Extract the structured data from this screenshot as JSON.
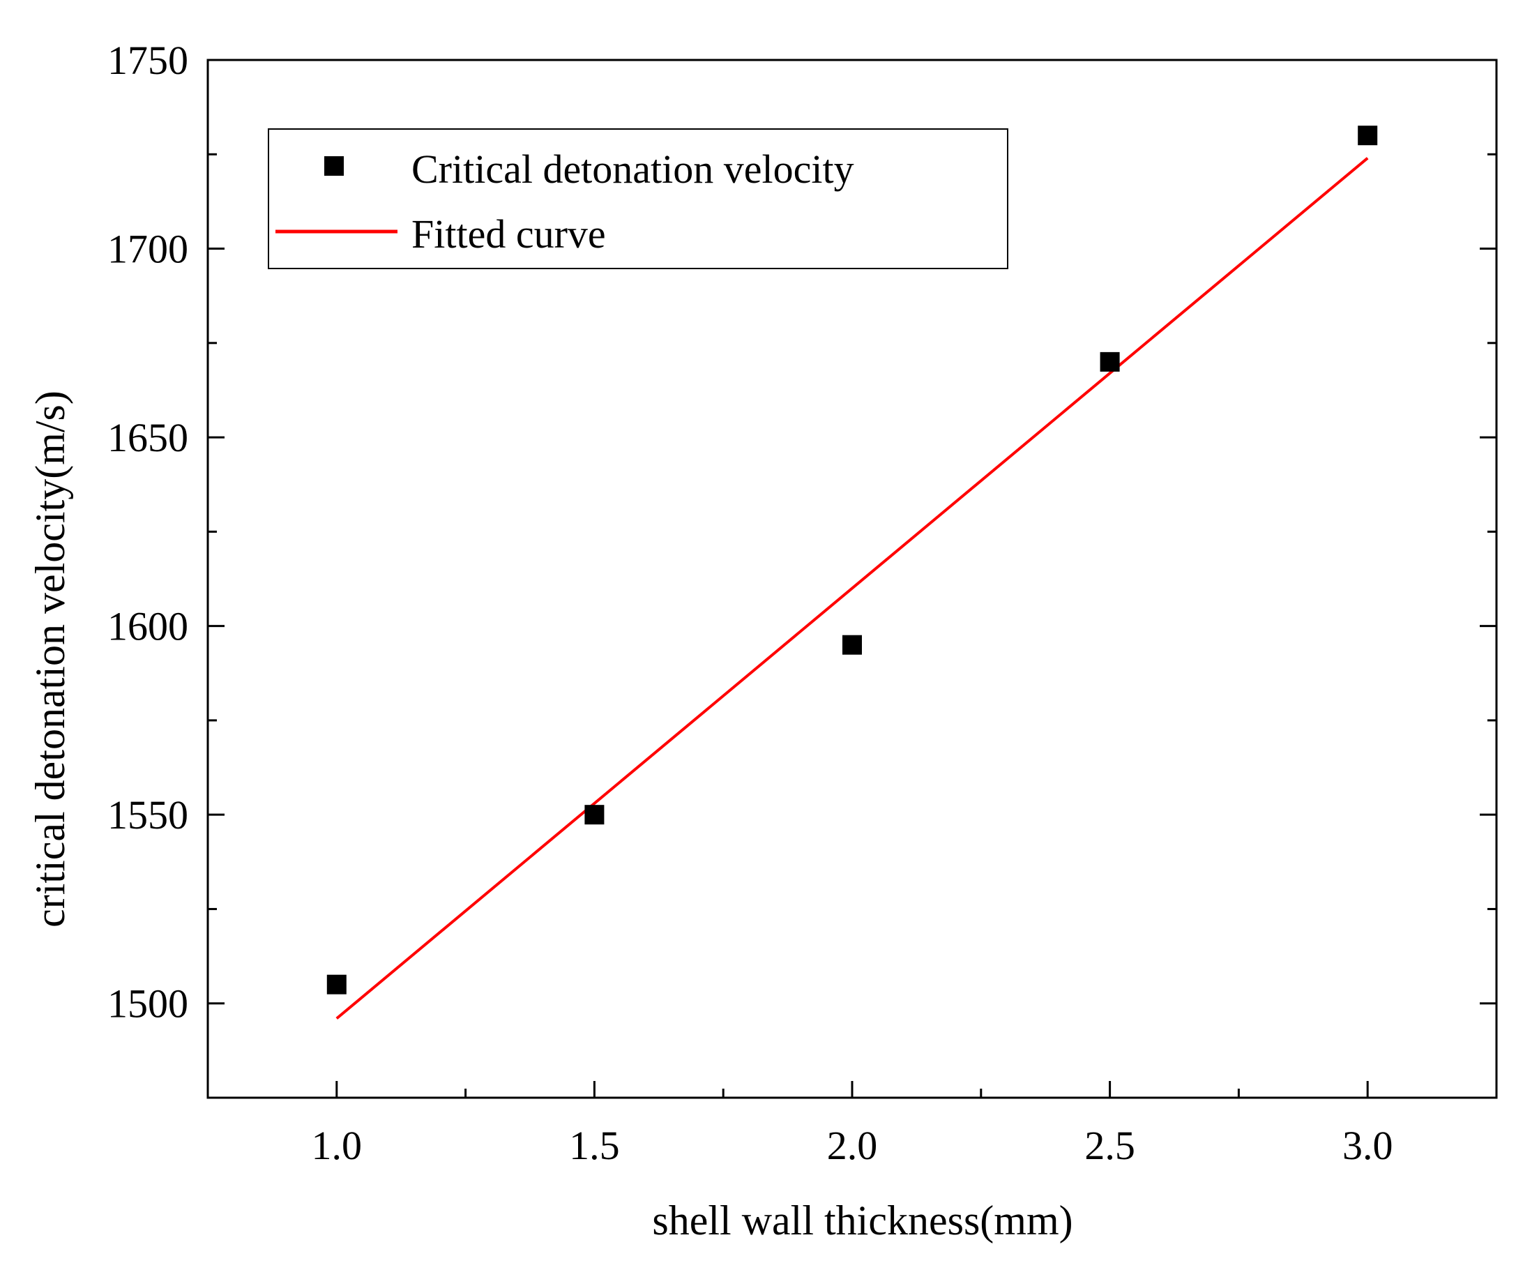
{
  "chart_data": {
    "type": "scatter",
    "xlabel": "shell wall thickness(mm)",
    "ylabel": "critical detonation velocity(m/s)",
    "xlim": [
      0.75,
      3.25
    ],
    "ylim": [
      1475,
      1750
    ],
    "xticks": [
      1.0,
      1.5,
      2.0,
      2.5,
      3.0
    ],
    "xtick_labels": [
      "1.0",
      "1.5",
      "2.0",
      "2.5",
      "3.0"
    ],
    "xminor": [
      1.25,
      1.75,
      2.25,
      2.75
    ],
    "yticks": [
      1500,
      1550,
      1600,
      1650,
      1700,
      1750
    ],
    "ytick_labels": [
      "1500",
      "1550",
      "1600",
      "1650",
      "1700",
      "1750"
    ],
    "yminor": [
      1525,
      1575,
      1625,
      1675,
      1725
    ],
    "series": [
      {
        "name": "Critical detonation velocity",
        "kind": "scatter",
        "marker": "square",
        "color": "#000000",
        "x": [
          1.0,
          1.5,
          2.0,
          2.5,
          3.0
        ],
        "y": [
          1505,
          1550,
          1595,
          1670,
          1730
        ]
      },
      {
        "name": "Fitted curve",
        "kind": "line",
        "color": "#ff0000",
        "x": [
          1.0,
          3.0
        ],
        "y": [
          1496,
          1724
        ]
      }
    ],
    "legend": {
      "position": "top-left"
    },
    "grid": false
  }
}
